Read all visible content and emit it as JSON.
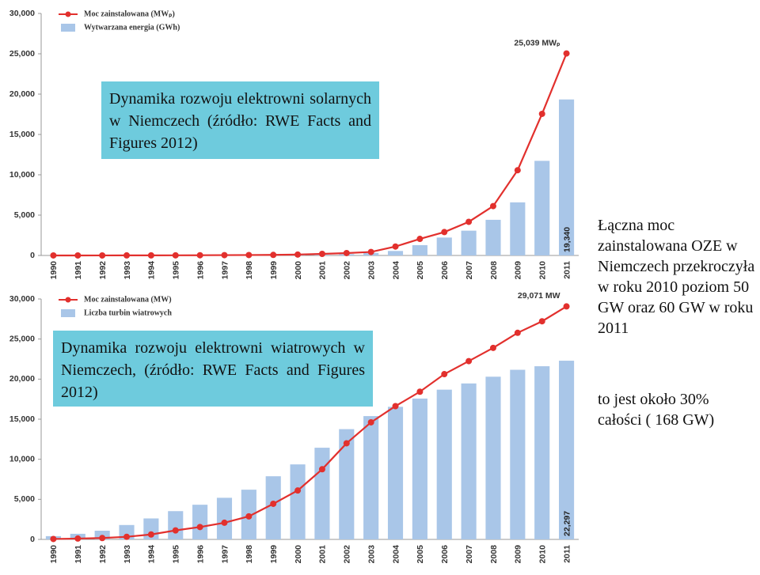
{
  "chart_data": [
    {
      "type": "bar_line",
      "categories": [
        "1990",
        "1991",
        "1992",
        "1993",
        "1994",
        "1995",
        "1996",
        "1997",
        "1998",
        "1999",
        "2000",
        "2001",
        "2002",
        "2003",
        "2004",
        "2005",
        "2006",
        "2007",
        "2008",
        "2009",
        "2010",
        "2011"
      ],
      "series": [
        {
          "name": "Moc zainstalowana (MWₚ)",
          "kind": "line",
          "color": "#e2302d",
          "values": [
            2,
            3,
            6,
            9,
            12,
            18,
            28,
            42,
            54,
            70,
            114,
            195,
            296,
            435,
            1105,
            2056,
            2899,
            4170,
            6120,
            10566,
            17554,
            25039
          ],
          "value_labels": [
            null,
            null,
            null,
            null,
            null,
            null,
            null,
            null,
            null,
            null,
            null,
            null,
            null,
            null,
            null,
            null,
            null,
            null,
            null,
            null,
            null,
            "25,039 MWₚ"
          ]
        },
        {
          "name": "Wytwarzana energia (GWh)",
          "kind": "bar",
          "color": "#a9c6e8",
          "values": [
            1,
            2,
            3,
            6,
            8,
            11,
            16,
            26,
            32,
            42,
            64,
            76,
            162,
            313,
            557,
            1282,
            2220,
            3075,
            4420,
            6583,
            11729,
            19340
          ],
          "value_labels": [
            null,
            null,
            null,
            null,
            null,
            null,
            null,
            null,
            null,
            null,
            null,
            null,
            null,
            null,
            null,
            null,
            null,
            null,
            null,
            null,
            null,
            "19,340"
          ]
        }
      ],
      "ylim": [
        0,
        30000
      ],
      "yticks": [
        0,
        {
          "value": 5000,
          "label": "5,000"
        },
        {
          "value": 10000,
          "label": "10,000"
        },
        {
          "value": 15000,
          "label": "15,000"
        },
        {
          "value": 20000,
          "label": "20,000"
        },
        {
          "value": 25000,
          "label": "25,000"
        },
        {
          "value": 30000,
          "label": "30,000"
        }
      ],
      "grid": false
    },
    {
      "type": "bar_line",
      "categories": [
        "1990",
        "1991",
        "1992",
        "1993",
        "1994",
        "1995",
        "1996",
        "1997",
        "1998",
        "1999",
        "2000",
        "2001",
        "2002",
        "2003",
        "2004",
        "2005",
        "2006",
        "2007",
        "2008",
        "2009",
        "2010",
        "2011"
      ],
      "series": [
        {
          "name": "Moc zainstalowana (MW)",
          "kind": "line",
          "color": "#e2302d",
          "values": [
            55,
            106,
            174,
            326,
            618,
            1121,
            1546,
            2082,
            2875,
            4444,
            6104,
            8754,
            11994,
            14609,
            16629,
            18428,
            20622,
            22247,
            23897,
            25777,
            27214,
            29071
          ],
          "value_labels": [
            null,
            null,
            null,
            null,
            null,
            null,
            null,
            null,
            null,
            null,
            null,
            null,
            null,
            null,
            null,
            null,
            null,
            null,
            null,
            null,
            null,
            "29,071 MW"
          ]
        },
        {
          "name": "Liczba turbin wiatrowych",
          "kind": "bar",
          "color": "#a9c6e8",
          "values": [
            405,
            700,
            1084,
            1797,
            2617,
            3528,
            4326,
            5193,
            6205,
            7879,
            9359,
            11438,
            13759,
            15387,
            16543,
            17574,
            18685,
            19460,
            20301,
            21164,
            21607,
            22297
          ],
          "value_labels": [
            null,
            null,
            null,
            null,
            null,
            null,
            null,
            null,
            null,
            null,
            null,
            null,
            null,
            null,
            null,
            null,
            null,
            null,
            null,
            null,
            null,
            "22,297"
          ]
        }
      ],
      "ylim": [
        0,
        30000
      ],
      "yticks": [
        0,
        {
          "value": 5000,
          "label": "5,000"
        },
        {
          "value": 10000,
          "label": "10,000"
        },
        {
          "value": 15000,
          "label": "15,000"
        },
        {
          "value": 20000,
          "label": "20,000"
        },
        {
          "value": 25000,
          "label": "25,000"
        },
        {
          "value": 30000,
          "label": "30,000"
        }
      ],
      "grid": false
    }
  ],
  "boxes": [
    "Dynamika rozwoju elektrowni solarnych w Niemczech (źródło: RWE Facts and Figures 2012)",
    "Dynamika rozwoju elektrowni wiatrowych w Niemczech, (źródło: RWE Facts and Figures 2012)"
  ],
  "notes": [
    "Łączna moc zainstalowana OZE w Niemczech przekroczyła w roku 2010 poziom 50 GW oraz 60 GW w roku 2011",
    "to jest około 30% całości ( 168 GW)"
  ]
}
